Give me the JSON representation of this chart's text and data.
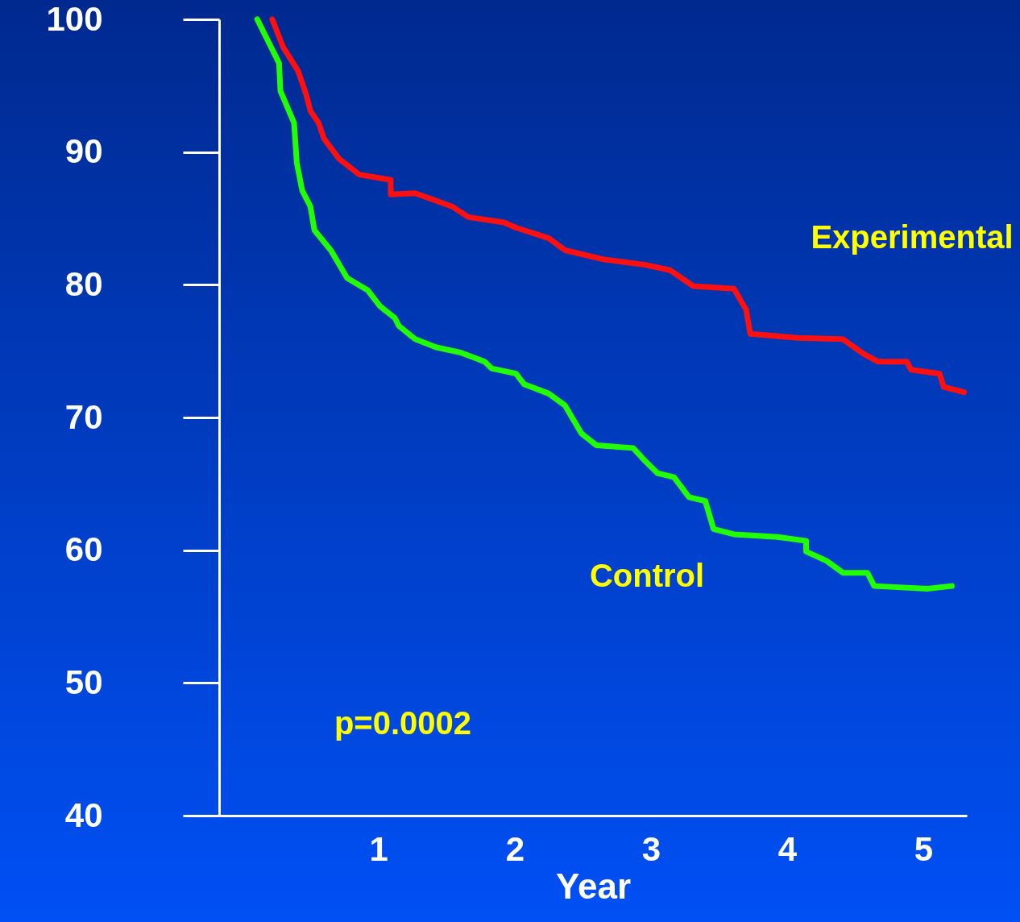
{
  "chart_data": {
    "type": "line",
    "xlabel": "Year",
    "xlim": [
      -0.17,
      5.32
    ],
    "xticks": [
      1,
      2,
      3,
      4,
      5
    ],
    "ylim": [
      40,
      100
    ],
    "yticks": [
      40,
      50,
      60,
      70,
      80,
      90,
      100
    ],
    "grid": false,
    "line_style": "solid",
    "marker": "none",
    "annotations": [
      "p=0.0002"
    ],
    "series": [
      {
        "name": "Experimental",
        "color": "#ff1010",
        "x": [
          0.22,
          0.3,
          0.41,
          0.47,
          0.5,
          0.56,
          0.6,
          0.71,
          0.86,
          1.09,
          1.09,
          1.27,
          1.54,
          1.66,
          1.92,
          2.01,
          2.25,
          2.37,
          2.66,
          2.96,
          3.14,
          3.31,
          3.61,
          3.7,
          3.73,
          4.08,
          4.41,
          4.56,
          4.67,
          4.88,
          4.91,
          5.12,
          5.15,
          5.3
        ],
        "values": [
          100,
          97.9,
          96.1,
          94.3,
          93.1,
          92.2,
          91.0,
          89.5,
          88.3,
          87.9,
          86.8,
          86.9,
          85.9,
          85.1,
          84.7,
          84.3,
          83.5,
          82.6,
          81.9,
          81.5,
          81.1,
          79.9,
          79.7,
          78.1,
          76.3,
          76.0,
          75.9,
          74.8,
          74.2,
          74.2,
          73.6,
          73.3,
          72.3,
          71.9
        ]
      },
      {
        "name": "Control",
        "color": "#22ff00",
        "x": [
          0.11,
          0.27,
          0.28,
          0.38,
          0.4,
          0.44,
          0.5,
          0.53,
          0.65,
          0.77,
          0.92,
          1.01,
          1.12,
          1.15,
          1.27,
          1.42,
          1.6,
          1.78,
          1.83,
          2.01,
          2.07,
          2.25,
          2.37,
          2.49,
          2.6,
          2.87,
          2.96,
          3.05,
          3.17,
          3.28,
          3.4,
          3.46,
          3.61,
          3.93,
          4.14,
          4.14,
          4.29,
          4.41,
          4.59,
          4.64,
          5.03,
          5.21
        ],
        "values": [
          100,
          96.7,
          94.6,
          92.2,
          89.2,
          87.1,
          85.9,
          84.1,
          82.6,
          80.5,
          79.6,
          78.4,
          77.5,
          76.9,
          75.9,
          75.3,
          74.9,
          74.2,
          73.7,
          73.3,
          72.5,
          71.8,
          70.9,
          68.8,
          67.9,
          67.7,
          66.7,
          65.8,
          65.5,
          64.0,
          63.7,
          61.6,
          61.2,
          61.0,
          60.7,
          59.9,
          59.2,
          58.3,
          58.3,
          57.3,
          57.1,
          57.3
        ]
      }
    ]
  }
}
